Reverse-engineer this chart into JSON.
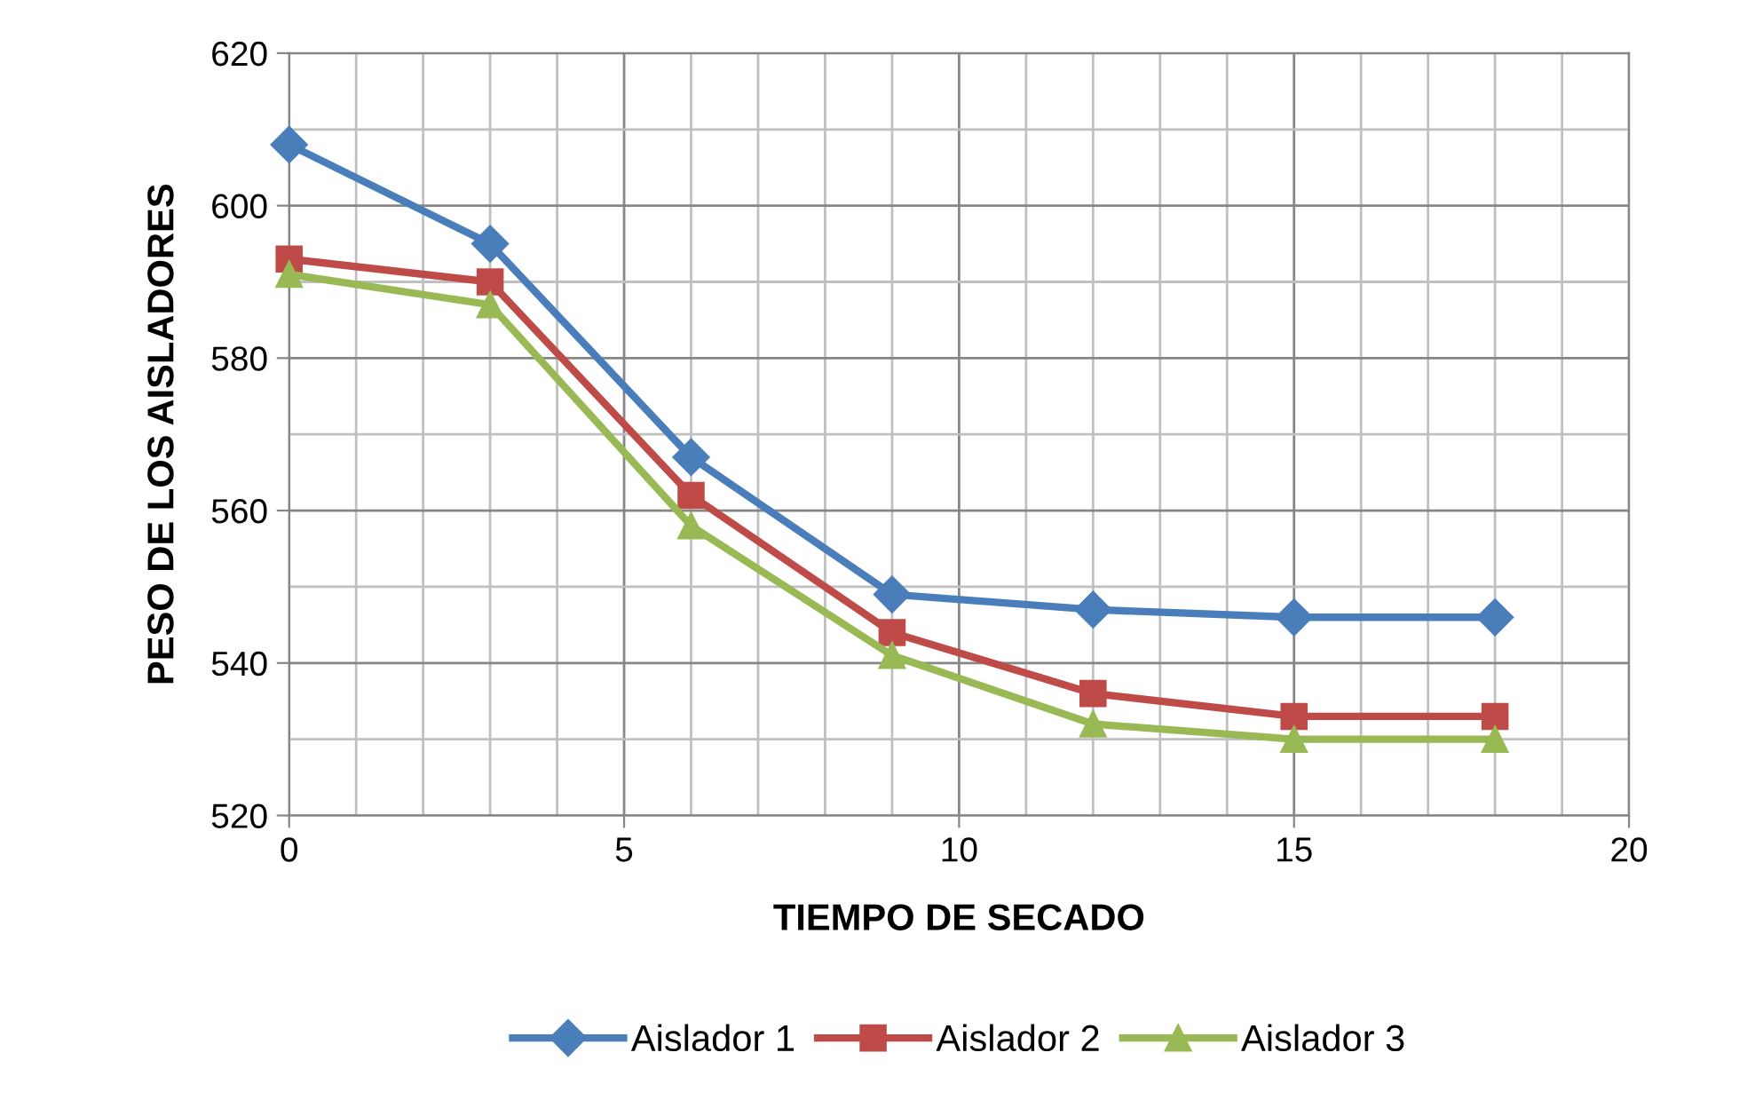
{
  "chart_data": {
    "type": "line",
    "xlabel": "TIEMPO DE SECADO",
    "ylabel": "PESO DE LOS AISLADORES",
    "x": [
      0,
      3,
      6,
      9,
      12,
      15,
      18
    ],
    "series": [
      {
        "name": "Aislador 1",
        "color": "#4a7ebb",
        "marker": "diamond",
        "values": [
          608,
          595,
          567,
          549,
          547,
          546,
          546
        ]
      },
      {
        "name": "Aislador 2",
        "color": "#be4b48",
        "marker": "square",
        "values": [
          593,
          590,
          562,
          544,
          536,
          533,
          533
        ]
      },
      {
        "name": "Aislador 3",
        "color": "#98b954",
        "marker": "triangle",
        "values": [
          591,
          587,
          558,
          541,
          532,
          530,
          530
        ]
      }
    ],
    "xlim": [
      0,
      20
    ],
    "xticks": [
      0,
      5,
      10,
      15,
      20
    ],
    "ylim": [
      520,
      620
    ],
    "yticks": [
      520,
      540,
      560,
      580,
      600,
      620
    ],
    "grid": true,
    "legend": "bottom",
    "line_style": "solid"
  }
}
